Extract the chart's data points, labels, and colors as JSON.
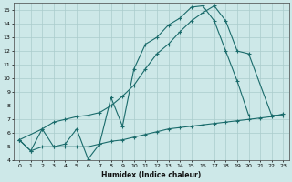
{
  "xlabel": "Humidex (Indice chaleur)",
  "bg_color": "#cde8e8",
  "grid_color": "#aacccc",
  "line_color": "#1a6b6b",
  "xlim": [
    -0.5,
    23.5
  ],
  "ylim": [
    4,
    15.5
  ],
  "xticks": [
    0,
    1,
    2,
    3,
    4,
    5,
    6,
    7,
    8,
    9,
    10,
    11,
    12,
    13,
    14,
    15,
    16,
    17,
    18,
    19,
    20,
    21,
    22,
    23
  ],
  "yticks": [
    4,
    5,
    6,
    7,
    8,
    9,
    10,
    11,
    12,
    13,
    14,
    15
  ],
  "line1_x": [
    0,
    1,
    2,
    3,
    4,
    5,
    6,
    7,
    8,
    9,
    10,
    11,
    12,
    13,
    14,
    15,
    16,
    17,
    18,
    19,
    20
  ],
  "line1_y": [
    5.5,
    4.7,
    6.3,
    5.0,
    5.2,
    6.3,
    4.1,
    5.2,
    8.6,
    6.5,
    10.7,
    12.5,
    13.0,
    13.9,
    14.4,
    15.2,
    15.3,
    14.2,
    12.0,
    9.8,
    7.3
  ],
  "line2_x": [
    0,
    2,
    3,
    4,
    5,
    6,
    7,
    8,
    9,
    10,
    11,
    12,
    13,
    14,
    15,
    16,
    17,
    18,
    19,
    20,
    22,
    23
  ],
  "line2_y": [
    5.5,
    6.3,
    6.8,
    7.0,
    7.2,
    7.3,
    7.5,
    8.0,
    8.7,
    9.5,
    10.7,
    11.8,
    12.5,
    13.4,
    14.2,
    14.8,
    15.3,
    14.2,
    12.0,
    11.8,
    7.3,
    7.3
  ],
  "line3_x": [
    0,
    1,
    2,
    3,
    4,
    5,
    6,
    7,
    8,
    9,
    10,
    11,
    12,
    13,
    14,
    15,
    16,
    17,
    18,
    19,
    20,
    21,
    22,
    23
  ],
  "line3_y": [
    5.5,
    4.7,
    5.0,
    5.0,
    5.0,
    5.0,
    5.0,
    5.2,
    5.4,
    5.5,
    5.7,
    5.9,
    6.1,
    6.3,
    6.4,
    6.5,
    6.6,
    6.7,
    6.8,
    6.9,
    7.0,
    7.1,
    7.2,
    7.4
  ]
}
